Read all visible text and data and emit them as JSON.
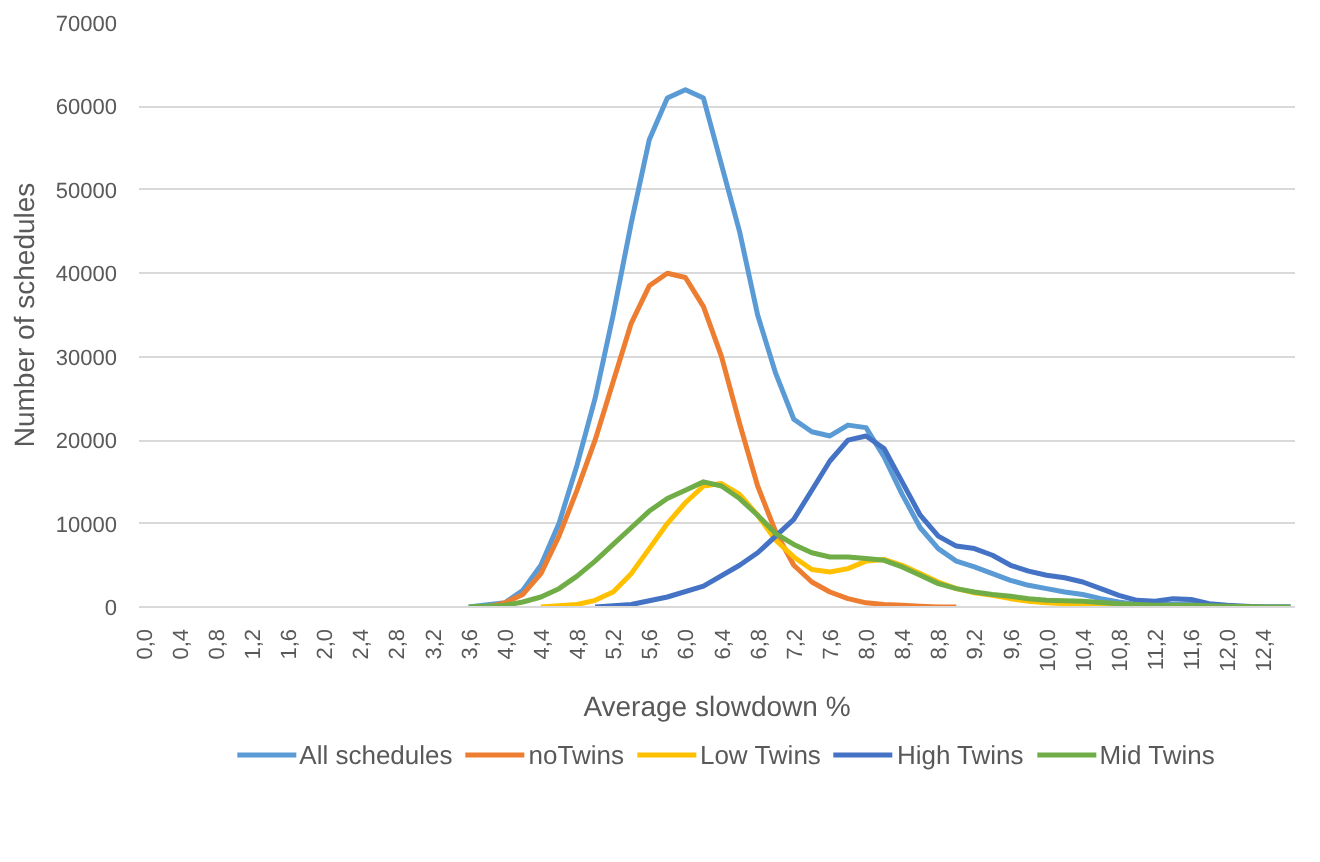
{
  "chart_data": {
    "type": "line",
    "xlabel": "Average slowdown %",
    "ylabel": "Number of schedules",
    "xlim": [
      -0.05,
      12.75
    ],
    "ylim": [
      0,
      70000
    ],
    "xticks": [
      {
        "value": 0.0,
        "label": "0,0"
      },
      {
        "value": 0.4,
        "label": "0,4"
      },
      {
        "value": 0.8,
        "label": "0,8"
      },
      {
        "value": 1.2,
        "label": "1,2"
      },
      {
        "value": 1.6,
        "label": "1,6"
      },
      {
        "value": 2.0,
        "label": "2,0"
      },
      {
        "value": 2.4,
        "label": "2,4"
      },
      {
        "value": 2.8,
        "label": "2,8"
      },
      {
        "value": 3.2,
        "label": "3,2"
      },
      {
        "value": 3.6,
        "label": "3,6"
      },
      {
        "value": 4.0,
        "label": "4,0"
      },
      {
        "value": 4.4,
        "label": "4,4"
      },
      {
        "value": 4.8,
        "label": "4,8"
      },
      {
        "value": 5.2,
        "label": "5,2"
      },
      {
        "value": 5.6,
        "label": "5,6"
      },
      {
        "value": 6.0,
        "label": "6,0"
      },
      {
        "value": 6.4,
        "label": "6,4"
      },
      {
        "value": 6.8,
        "label": "6,8"
      },
      {
        "value": 7.2,
        "label": "7,2"
      },
      {
        "value": 7.6,
        "label": "7,6"
      },
      {
        "value": 8.0,
        "label": "8,0"
      },
      {
        "value": 8.4,
        "label": "8,4"
      },
      {
        "value": 8.8,
        "label": "8,8"
      },
      {
        "value": 9.2,
        "label": "9,2"
      },
      {
        "value": 9.6,
        "label": "9,6"
      },
      {
        "value": 10.0,
        "label": "10,0"
      },
      {
        "value": 10.4,
        "label": "10,4"
      },
      {
        "value": 10.8,
        "label": "10,8"
      },
      {
        "value": 11.2,
        "label": "11,2"
      },
      {
        "value": 11.6,
        "label": "11,6"
      },
      {
        "value": 12.0,
        "label": "12,0"
      },
      {
        "value": 12.4,
        "label": "12,4"
      }
    ],
    "yticks": [
      0,
      10000,
      20000,
      30000,
      40000,
      50000,
      60000,
      70000
    ],
    "grid": "y",
    "legend": "bottom",
    "line_style": "solid",
    "series": [
      {
        "name": "All schedules",
        "color": "#5b9bd5",
        "x": [
          3.6,
          4.0,
          4.2,
          4.4,
          4.6,
          4.8,
          5.0,
          5.2,
          5.4,
          5.6,
          5.8,
          6.0,
          6.2,
          6.4,
          6.6,
          6.8,
          7.0,
          7.2,
          7.4,
          7.6,
          7.8,
          8.0,
          8.2,
          8.4,
          8.6,
          8.8,
          9.0,
          9.2,
          9.4,
          9.6,
          9.8,
          10.0,
          10.2,
          10.4,
          10.6,
          10.8,
          11.0,
          11.2,
          11.4,
          11.6,
          11.8,
          12.0,
          12.2,
          12.4,
          12.7
        ],
        "values": [
          0,
          500,
          2000,
          5000,
          10000,
          17000,
          25000,
          35000,
          46000,
          56000,
          61000,
          62000,
          61000,
          53000,
          45000,
          35000,
          28000,
          22500,
          21000,
          20500,
          21800,
          21500,
          18000,
          13500,
          9500,
          7000,
          5500,
          4800,
          4000,
          3200,
          2600,
          2200,
          1800,
          1500,
          1000,
          600,
          300,
          300,
          300,
          400,
          200,
          100,
          0,
          0,
          0
        ]
      },
      {
        "name": "noTwins",
        "color": "#ed7d31",
        "x": [
          3.8,
          4.0,
          4.2,
          4.4,
          4.6,
          4.8,
          5.0,
          5.2,
          5.4,
          5.6,
          5.8,
          6.0,
          6.2,
          6.4,
          6.6,
          6.8,
          7.0,
          7.2,
          7.4,
          7.6,
          7.8,
          8.0,
          8.2,
          8.4,
          8.6,
          8.8,
          9.0
        ],
        "values": [
          0,
          500,
          1500,
          4000,
          8500,
          14000,
          20000,
          27000,
          34000,
          38500,
          40000,
          39500,
          36000,
          30000,
          22000,
          14500,
          9000,
          5000,
          3000,
          1800,
          1000,
          500,
          300,
          200,
          100,
          0,
          0
        ]
      },
      {
        "name": "Low Twins",
        "color": "#ffc000",
        "x": [
          4.4,
          4.8,
          5.0,
          5.2,
          5.4,
          5.6,
          5.8,
          6.0,
          6.2,
          6.4,
          6.6,
          6.8,
          7.0,
          7.2,
          7.4,
          7.6,
          7.8,
          8.0,
          8.2,
          8.4,
          8.6,
          8.8,
          9.0,
          9.2,
          9.4,
          9.6,
          9.8,
          10.0,
          10.4,
          10.8
        ],
        "values": [
          0,
          300,
          800,
          1800,
          4000,
          7000,
          10000,
          12500,
          14500,
          14800,
          13500,
          11000,
          8000,
          6000,
          4500,
          4200,
          4600,
          5500,
          5700,
          5000,
          4000,
          3000,
          2200,
          1700,
          1400,
          1000,
          700,
          500,
          300,
          200
        ]
      },
      {
        "name": "High Twins",
        "color": "#4472c4",
        "x": [
          5.0,
          5.4,
          5.8,
          6.2,
          6.6,
          6.8,
          7.0,
          7.2,
          7.4,
          7.6,
          7.8,
          8.0,
          8.2,
          8.4,
          8.6,
          8.8,
          9.0,
          9.2,
          9.4,
          9.6,
          9.8,
          10.0,
          10.2,
          10.4,
          10.6,
          10.8,
          11.0,
          11.2,
          11.4,
          11.6,
          11.8,
          12.0,
          12.2,
          12.4,
          12.7
        ],
        "values": [
          0,
          300,
          1200,
          2500,
          5000,
          6500,
          8500,
          10500,
          14000,
          17500,
          20000,
          20500,
          19000,
          15000,
          11000,
          8500,
          7300,
          7000,
          6200,
          5000,
          4300,
          3800,
          3500,
          3000,
          2200,
          1400,
          800,
          700,
          1000,
          900,
          400,
          200,
          100,
          0,
          0
        ]
      },
      {
        "name": "Mid Twins",
        "color": "#70ad47",
        "x": [
          3.6,
          4.0,
          4.2,
          4.4,
          4.6,
          4.8,
          5.0,
          5.2,
          5.4,
          5.6,
          5.8,
          6.0,
          6.2,
          6.4,
          6.6,
          6.8,
          7.0,
          7.2,
          7.4,
          7.6,
          7.8,
          8.0,
          8.2,
          8.4,
          8.6,
          8.8,
          9.0,
          9.2,
          9.4,
          9.6,
          9.8,
          10.0,
          10.4,
          10.8,
          11.2,
          11.6,
          12.0,
          12.4,
          12.7
        ],
        "values": [
          0,
          200,
          600,
          1200,
          2200,
          3700,
          5500,
          7500,
          9500,
          11500,
          13000,
          14000,
          15000,
          14500,
          13000,
          11000,
          8800,
          7500,
          6500,
          6000,
          6000,
          5800,
          5600,
          4800,
          3800,
          2800,
          2200,
          1800,
          1500,
          1300,
          1000,
          800,
          700,
          400,
          200,
          200,
          100,
          0,
          0
        ]
      }
    ]
  }
}
